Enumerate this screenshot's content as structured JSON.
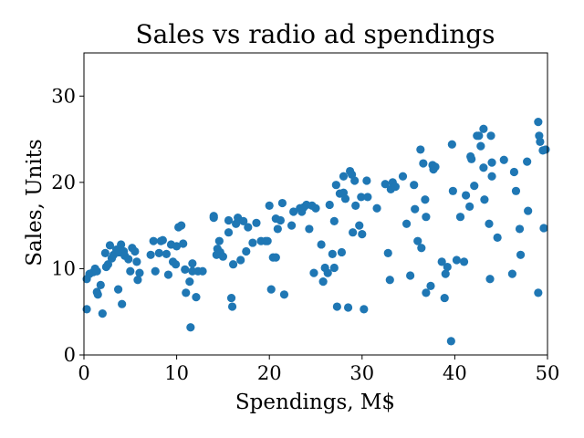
{
  "chart_data": {
    "type": "scatter",
    "title": "Sales vs radio ad spendings",
    "xlabel": "Spendings, M$",
    "ylabel": "Sales, Units",
    "xlim": [
      0,
      50
    ],
    "ylim": [
      0,
      35
    ],
    "xticks": [
      0,
      10,
      20,
      30,
      40,
      50
    ],
    "yticks": [
      0,
      10,
      20,
      30
    ],
    "grid": false,
    "colors": {
      "marker": "#1f77b4",
      "axes": "#000000"
    },
    "series": [
      {
        "points": [
          [
            0.3,
            5.3
          ],
          [
            0.3,
            8.8
          ],
          [
            0.6,
            9.4
          ],
          [
            1.0,
            9.6
          ],
          [
            1.2,
            10.0
          ],
          [
            1.4,
            9.7
          ],
          [
            1.4,
            7.3
          ],
          [
            1.5,
            7.0
          ],
          [
            1.8,
            8.1
          ],
          [
            2.0,
            4.8
          ],
          [
            2.3,
            11.8
          ],
          [
            2.4,
            10.2
          ],
          [
            2.6,
            10.5
          ],
          [
            2.8,
            12.7
          ],
          [
            3.0,
            11.2
          ],
          [
            3.2,
            11.6
          ],
          [
            3.5,
            12.2
          ],
          [
            3.7,
            7.6
          ],
          [
            3.8,
            11.9
          ],
          [
            4.0,
            12.8
          ],
          [
            4.1,
            5.9
          ],
          [
            4.3,
            12.0
          ],
          [
            4.4,
            11.5
          ],
          [
            4.8,
            11.1
          ],
          [
            5.0,
            9.7
          ],
          [
            5.2,
            12.4
          ],
          [
            5.5,
            12.0
          ],
          [
            5.7,
            10.8
          ],
          [
            5.8,
            8.7
          ],
          [
            6.0,
            9.5
          ],
          [
            7.2,
            11.6
          ],
          [
            7.5,
            13.2
          ],
          [
            7.7,
            9.7
          ],
          [
            8.1,
            11.8
          ],
          [
            8.3,
            13.2
          ],
          [
            8.5,
            13.3
          ],
          [
            8.9,
            11.7
          ],
          [
            9.1,
            9.3
          ],
          [
            9.4,
            12.8
          ],
          [
            9.6,
            10.8
          ],
          [
            9.9,
            10.5
          ],
          [
            10.0,
            12.6
          ],
          [
            10.2,
            14.8
          ],
          [
            10.5,
            15.0
          ],
          [
            10.7,
            12.9
          ],
          [
            10.9,
            9.9
          ],
          [
            11.0,
            7.2
          ],
          [
            11.4,
            8.5
          ],
          [
            11.5,
            3.2
          ],
          [
            11.7,
            10.6
          ],
          [
            11.7,
            9.7
          ],
          [
            12.1,
            6.7
          ],
          [
            12.3,
            9.7
          ],
          [
            12.8,
            9.7
          ],
          [
            14.0,
            15.9
          ],
          [
            14.0,
            16.1
          ],
          [
            14.3,
            11.6
          ],
          [
            14.4,
            12.3
          ],
          [
            14.6,
            13.2
          ],
          [
            14.7,
            11.9
          ],
          [
            15.0,
            11.4
          ],
          [
            15.6,
            15.6
          ],
          [
            15.6,
            14.2
          ],
          [
            15.9,
            6.6
          ],
          [
            16.0,
            5.6
          ],
          [
            16.1,
            10.5
          ],
          [
            16.4,
            15.2
          ],
          [
            16.6,
            15.9
          ],
          [
            16.9,
            11.0
          ],
          [
            17.2,
            15.5
          ],
          [
            17.5,
            12.0
          ],
          [
            17.7,
            14.8
          ],
          [
            18.2,
            13.0
          ],
          [
            18.6,
            15.3
          ],
          [
            19.1,
            13.2
          ],
          [
            19.6,
            13.2
          ],
          [
            19.8,
            13.2
          ],
          [
            20.0,
            17.3
          ],
          [
            20.2,
            7.6
          ],
          [
            20.4,
            11.3
          ],
          [
            20.7,
            11.3
          ],
          [
            20.7,
            15.8
          ],
          [
            20.9,
            14.6
          ],
          [
            21.2,
            15.6
          ],
          [
            21.4,
            17.6
          ],
          [
            21.6,
            7.0
          ],
          [
            22.4,
            15.0
          ],
          [
            22.6,
            16.6
          ],
          [
            23.3,
            17.0
          ],
          [
            23.5,
            16.6
          ],
          [
            23.7,
            17.1
          ],
          [
            24.0,
            17.4
          ],
          [
            24.3,
            14.6
          ],
          [
            24.6,
            17.3
          ],
          [
            24.8,
            9.5
          ],
          [
            25.0,
            17.0
          ],
          [
            25.6,
            12.8
          ],
          [
            25.8,
            8.5
          ],
          [
            26.0,
            10.1
          ],
          [
            26.3,
            9.5
          ],
          [
            26.5,
            17.4
          ],
          [
            26.8,
            11.7
          ],
          [
            27.0,
            15.5
          ],
          [
            27.0,
            10.1
          ],
          [
            27.2,
            19.7
          ],
          [
            27.3,
            5.6
          ],
          [
            27.6,
            18.7
          ],
          [
            27.8,
            11.9
          ],
          [
            28.0,
            18.8
          ],
          [
            28.0,
            20.7
          ],
          [
            28.2,
            18.1
          ],
          [
            28.5,
            5.5
          ],
          [
            28.7,
            21.3
          ],
          [
            28.9,
            20.9
          ],
          [
            29.0,
            14.2
          ],
          [
            29.2,
            20.2
          ],
          [
            29.3,
            17.3
          ],
          [
            29.7,
            15.0
          ],
          [
            29.9,
            18.3
          ],
          [
            30.0,
            14.0
          ],
          [
            30.2,
            5.3
          ],
          [
            30.5,
            20.2
          ],
          [
            30.6,
            18.3
          ],
          [
            31.6,
            17.0
          ],
          [
            32.5,
            19.8
          ],
          [
            32.8,
            11.8
          ],
          [
            33.0,
            8.7
          ],
          [
            33.1,
            19.2
          ],
          [
            33.3,
            20.0
          ],
          [
            33.6,
            19.5
          ],
          [
            34.4,
            20.7
          ],
          [
            34.8,
            15.2
          ],
          [
            35.2,
            9.2
          ],
          [
            35.6,
            19.7
          ],
          [
            35.7,
            16.9
          ],
          [
            36.0,
            13.2
          ],
          [
            36.3,
            23.8
          ],
          [
            36.4,
            12.4
          ],
          [
            36.6,
            22.2
          ],
          [
            36.8,
            18.0
          ],
          [
            36.9,
            16.0
          ],
          [
            36.9,
            7.2
          ],
          [
            37.4,
            8.0
          ],
          [
            37.6,
            22.0
          ],
          [
            37.7,
            21.5
          ],
          [
            37.9,
            21.8
          ],
          [
            38.6,
            10.8
          ],
          [
            38.9,
            6.6
          ],
          [
            39.0,
            9.4
          ],
          [
            39.2,
            10.2
          ],
          [
            39.6,
            1.6
          ],
          [
            39.7,
            24.4
          ],
          [
            39.8,
            19.0
          ],
          [
            40.2,
            11.0
          ],
          [
            40.6,
            16.0
          ],
          [
            41.0,
            10.8
          ],
          [
            41.2,
            18.5
          ],
          [
            41.6,
            17.2
          ],
          [
            41.7,
            23.0
          ],
          [
            41.8,
            22.7
          ],
          [
            42.1,
            19.6
          ],
          [
            42.4,
            25.4
          ],
          [
            42.6,
            25.4
          ],
          [
            42.8,
            24.2
          ],
          [
            43.1,
            21.7
          ],
          [
            43.1,
            26.2
          ],
          [
            43.2,
            18.0
          ],
          [
            43.7,
            15.2
          ],
          [
            43.8,
            8.8
          ],
          [
            43.9,
            25.4
          ],
          [
            44.0,
            22.3
          ],
          [
            44.0,
            20.7
          ],
          [
            44.6,
            13.6
          ],
          [
            45.3,
            22.6
          ],
          [
            46.2,
            9.4
          ],
          [
            46.4,
            21.2
          ],
          [
            46.6,
            19.0
          ],
          [
            47.0,
            14.6
          ],
          [
            47.1,
            11.6
          ],
          [
            47.8,
            22.4
          ],
          [
            47.9,
            16.7
          ],
          [
            49.0,
            7.2
          ],
          [
            49.0,
            27.0
          ],
          [
            49.1,
            25.4
          ],
          [
            49.2,
            24.7
          ],
          [
            49.5,
            23.7
          ],
          [
            49.6,
            14.7
          ],
          [
            49.8,
            23.8
          ]
        ]
      }
    ]
  }
}
